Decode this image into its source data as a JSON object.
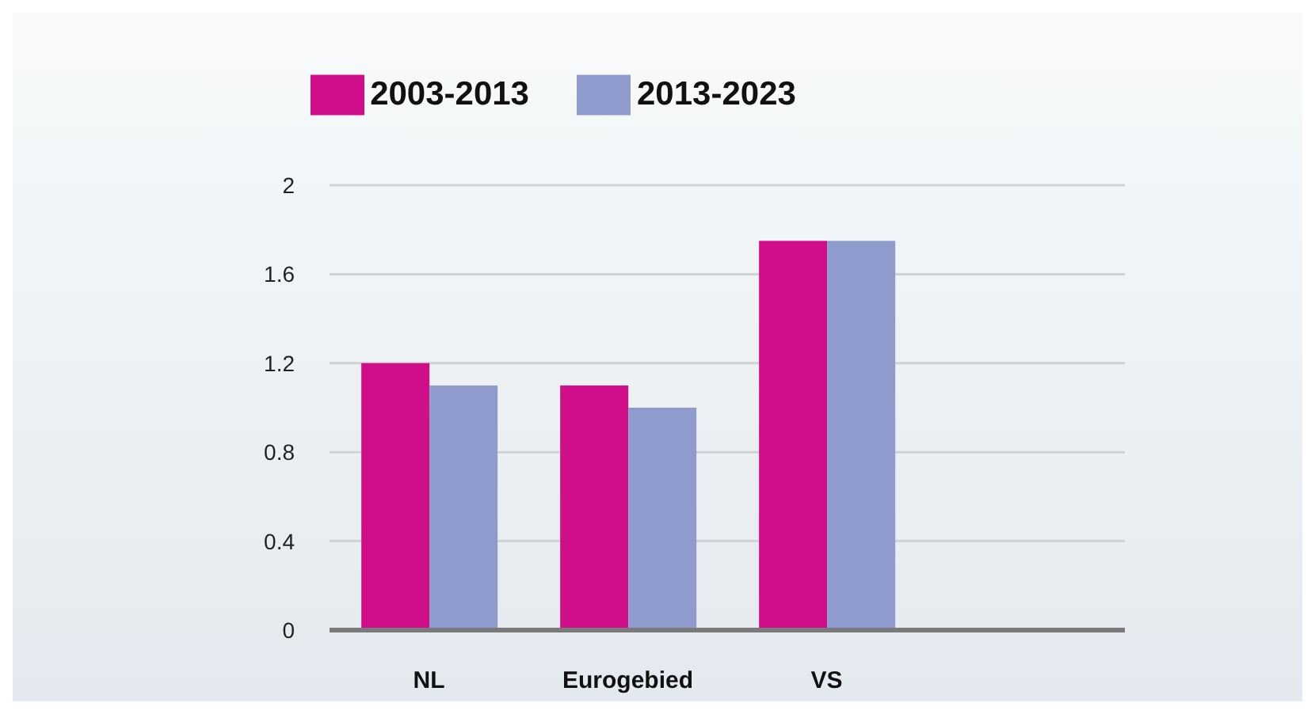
{
  "chart_data": {
    "type": "bar",
    "categories": [
      "NL",
      "Eurogebied",
      "VS",
      null
    ],
    "series": [
      {
        "name": "2003-2013",
        "color": "#d10e8a",
        "values": [
          1.2,
          1.1,
          1.75,
          null
        ]
      },
      {
        "name": "2013-2023",
        "color": "#8f9bcd",
        "values": [
          1.1,
          1.0,
          1.75,
          null
        ]
      }
    ],
    "ylim": [
      0,
      2
    ],
    "yticks": [
      0,
      0.4,
      0.8,
      1.2,
      1.6,
      2
    ],
    "grid": "y",
    "legend": "top"
  }
}
